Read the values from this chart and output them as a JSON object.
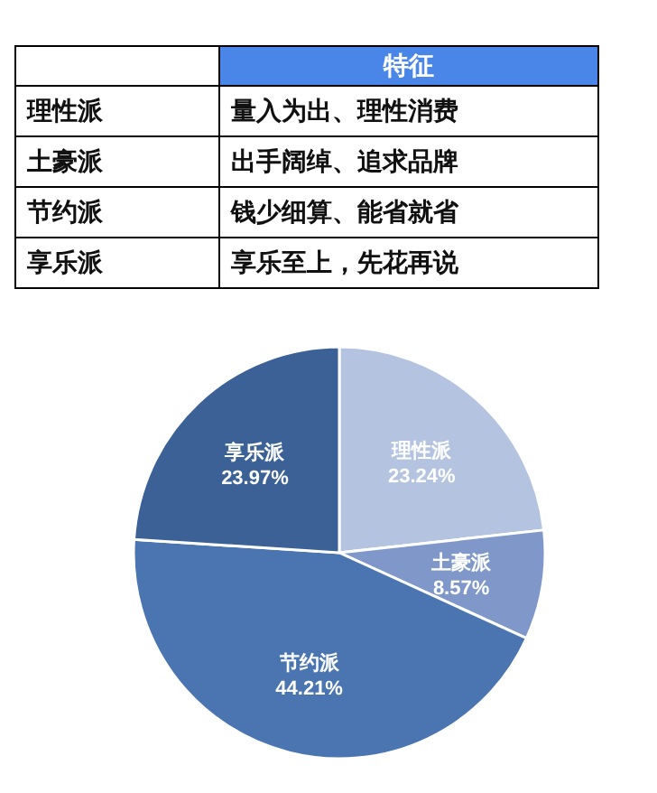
{
  "chart_data": {
    "type": "pie",
    "categories": [
      "理性派",
      "土豪派",
      "节约派",
      "享乐派"
    ],
    "values": [
      23.24,
      8.57,
      44.21,
      23.97
    ],
    "value_labels": [
      "23.24%",
      "8.57%",
      "44.21%",
      "23.97%"
    ],
    "colors": [
      "#b4c3e0",
      "#7f98c9",
      "#4b75b1",
      "#3b6197"
    ],
    "annotations": [
      "特征",
      "量入为出、理性消费",
      "出手阔绰、追求品牌",
      "钱少细算、能省就省",
      "享乐至上，先花再说"
    ],
    "legend": false
  }
}
